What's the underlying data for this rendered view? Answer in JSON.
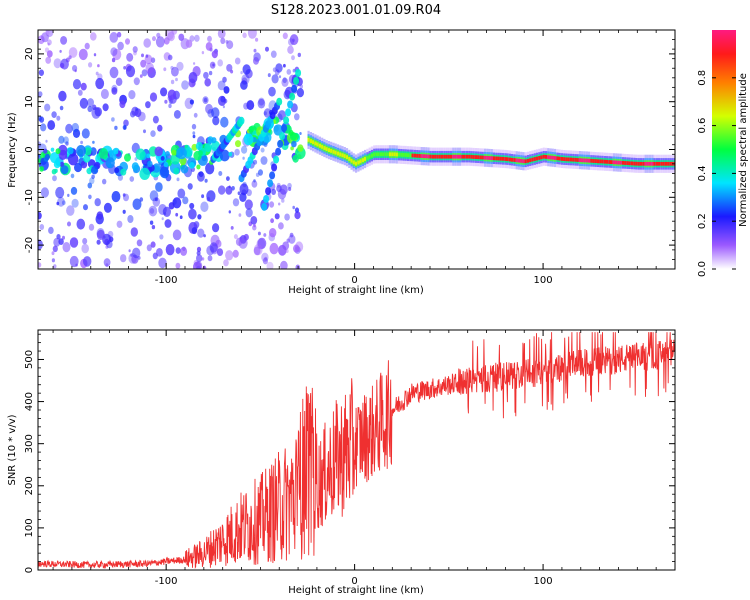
{
  "title": "S128.2023.001.01.09.R04",
  "chart_data": [
    {
      "type": "heatmap",
      "xlabel": "Height of straight line (km)",
      "ylabel": "Frequency (Hz)",
      "xlim": [
        -168,
        170
      ],
      "ylim": [
        -25,
        25
      ],
      "x_ticks": [
        -100,
        0,
        100
      ],
      "y_ticks": [
        -20,
        -10,
        0,
        10,
        20
      ],
      "colorbar": {
        "label": "Normalized spectral amplitude",
        "range": [
          0.0,
          1.0
        ],
        "ticks": [
          "0.0",
          "0.2",
          "0.4",
          "0.6",
          "0.8"
        ]
      },
      "ridge": {
        "x": [
          -168,
          -150,
          -120,
          -100,
          -80,
          -60,
          -40,
          -30,
          -25,
          -15,
          -5,
          0,
          10,
          20,
          40,
          60,
          80,
          90,
          100,
          110,
          130,
          150,
          170
        ],
        "y": [
          -2,
          -2.5,
          -3,
          -2.5,
          -1,
          2,
          4,
          0,
          2,
          0,
          -1.5,
          -3,
          -1,
          -1,
          -1.5,
          -1.5,
          -2,
          -2.5,
          -1.5,
          -2,
          -2.5,
          -3,
          -3
        ]
      },
      "grid": false
    },
    {
      "type": "line",
      "xlabel": "Height of straight line (km)",
      "ylabel": "SNR (10 * v/v)",
      "xlim": [
        -168,
        170
      ],
      "ylim": [
        0,
        570
      ],
      "x_ticks": [
        -100,
        0,
        100
      ],
      "y_ticks": [
        0,
        100,
        200,
        300,
        400,
        500
      ],
      "color": "#ef3030",
      "series": [
        {
          "x": [
            -168,
            -140,
            -110,
            -90,
            -80,
            -70,
            -60,
            -50,
            -40,
            -30,
            -25,
            -20,
            -15,
            -10,
            0,
            10,
            20,
            30,
            40,
            50,
            60,
            80,
            100,
            120,
            140,
            160,
            170
          ],
          "y": [
            15,
            12,
            15,
            25,
            40,
            70,
            100,
            120,
            150,
            180,
            260,
            200,
            230,
            260,
            300,
            330,
            380,
            420,
            430,
            440,
            450,
            460,
            470,
            490,
            500,
            510,
            515
          ]
        }
      ],
      "grid": false
    }
  ]
}
